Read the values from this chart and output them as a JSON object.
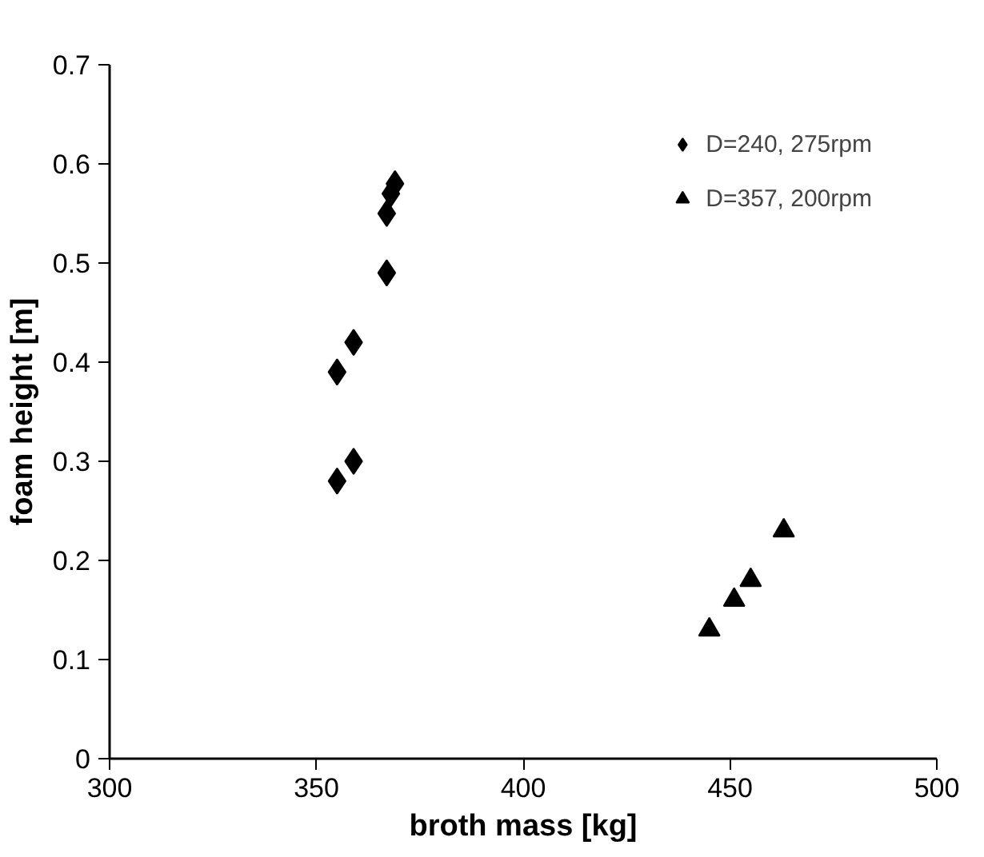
{
  "chart_data": {
    "type": "scatter",
    "xlabel": "broth mass [kg]",
    "ylabel": "foam height [m]",
    "xlim": [
      300,
      500
    ],
    "xticks": [
      300,
      350,
      400,
      450,
      500
    ],
    "ylim": [
      0,
      0.7
    ],
    "yticks": [
      0,
      0.1,
      0.2,
      0.3,
      0.4,
      0.5,
      0.6,
      0.7
    ],
    "grid": false,
    "legend": "top right",
    "series": [
      {
        "name": "D=240, 275rpm",
        "color": "#000000",
        "marker": "diamond",
        "x": [
          355,
          355,
          359,
          359,
          367,
          367,
          368,
          369
        ],
        "values": [
          0.28,
          0.39,
          0.3,
          0.42,
          0.49,
          0.55,
          0.57,
          0.58
        ]
      },
      {
        "name": "D=357, 200rpm",
        "color": "#000000",
        "marker": "triangle",
        "x": [
          445,
          451,
          455,
          463
        ],
        "values": [
          0.13,
          0.16,
          0.18,
          0.23
        ]
      }
    ]
  }
}
